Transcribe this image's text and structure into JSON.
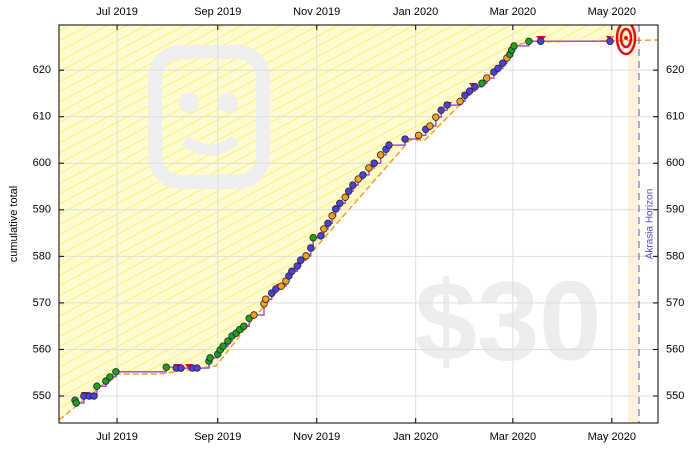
{
  "chart_data": {
    "type": "line",
    "y_label": "cumulative total",
    "horizon_label": "Akrasia Horizon",
    "watermark": "$30",
    "xlim": [
      2019.398,
      2020.409
    ],
    "ylim": [
      544.2,
      629.7
    ],
    "xticks": [
      {
        "value": 2019.496,
        "label": "Jul 2019"
      },
      {
        "value": 2019.666,
        "label": "Sep 2019"
      },
      {
        "value": 2019.833,
        "label": "Nov 2019"
      },
      {
        "value": 2020.0,
        "label": "Jan 2020"
      },
      {
        "value": 2020.164,
        "label": "Mar 2020"
      },
      {
        "value": 2020.331,
        "label": "May 2020"
      }
    ],
    "yticks": [
      550,
      560,
      570,
      580,
      590,
      600,
      610,
      620
    ],
    "grid": true,
    "line_color": "#9b59d0",
    "x": [
      2019.425,
      2019.427,
      2019.44,
      2019.449,
      2019.457,
      2019.462,
      2019.477,
      2019.484,
      2019.494,
      2019.579,
      2019.596,
      2019.604,
      2019.623,
      2019.631,
      2019.651,
      2019.653,
      2019.666,
      2019.67,
      2019.675,
      2019.683,
      2019.69,
      2019.697,
      2019.703,
      2019.71,
      2019.719,
      2019.727,
      2019.744,
      2019.747,
      2019.757,
      2019.764,
      2019.773,
      2019.781,
      2019.786,
      2019.791,
      2019.8,
      2019.806,
      2019.815,
      2019.823,
      2019.827,
      2019.84,
      2019.845,
      2019.852,
      2019.859,
      2019.865,
      2019.872,
      2019.881,
      2019.887,
      2019.894,
      2019.903,
      2019.911,
      2019.921,
      2019.93,
      2019.941,
      2019.95,
      2019.955,
      2019.982,
      2020.005,
      2020.017,
      2020.024,
      2020.034,
      2020.043,
      2020.053,
      2020.075,
      2020.083,
      2020.091,
      2020.1,
      2020.112,
      2020.12,
      2020.132,
      2020.139,
      2020.147,
      2020.154,
      2020.159,
      2020.162,
      2020.166,
      2020.191,
      2020.211,
      2020.328
    ],
    "values": [
      549.1,
      548.5,
      550.0,
      550.0,
      550.0,
      552.1,
      553.2,
      554.1,
      555.2,
      556.2,
      556.0,
      556.0,
      556.0,
      556.0,
      557.5,
      558.2,
      559.0,
      559.9,
      560.7,
      561.8,
      562.9,
      563.5,
      564.3,
      565.0,
      566.7,
      567.4,
      569.8,
      570.8,
      572.1,
      573.0,
      573.6,
      574.7,
      575.8,
      576.8,
      577.9,
      579.2,
      580.1,
      581.8,
      584.0,
      584.4,
      585.9,
      587.1,
      588.7,
      590.2,
      591.4,
      592.7,
      594.0,
      595.3,
      596.6,
      597.5,
      599.0,
      600.0,
      601.8,
      603.0,
      603.9,
      605.2,
      606.0,
      607.3,
      608.0,
      609.9,
      611.4,
      612.5,
      613.3,
      614.6,
      615.5,
      616.4,
      617.2,
      618.3,
      619.6,
      620.4,
      621.5,
      622.6,
      623.4,
      624.3,
      625.2,
      626.2,
      626.2,
      626.2
    ],
    "point_colors": [
      "#1fa01f",
      "#1fa01f",
      "#4f3fe0",
      "#4f3fe0",
      "#4f3fe0",
      "#1fa01f",
      "#1fa01f",
      "#1fa01f",
      "#1fa01f",
      "#1fa01f",
      "#4f3fe0",
      "#4f3fe0",
      "#4f3fe0",
      "#4f3fe0",
      "#1fa01f",
      "#1fa01f",
      "#1fa01f",
      "#1fa01f",
      "#1fa01f",
      "#1fa01f",
      "#1fa01f",
      "#1fa01f",
      "#1fa01f",
      "#1fa01f",
      "#1fa01f",
      "#f5a020",
      "#f5a020",
      "#f5a020",
      "#4f3fe0",
      "#4f3fe0",
      "#f5a020",
      "#f5a020",
      "#4f3fe0",
      "#4f3fe0",
      "#4f3fe0",
      "#4f3fe0",
      "#f5a020",
      "#4f3fe0",
      "#1fa01f",
      "#4f3fe0",
      "#f5a020",
      "#4f3fe0",
      "#f5a020",
      "#4f3fe0",
      "#4f3fe0",
      "#f5a020",
      "#4f3fe0",
      "#4f3fe0",
      "#f5a020",
      "#4f3fe0",
      "#f5a020",
      "#4f3fe0",
      "#f5a020",
      "#4f3fe0",
      "#4f3fe0",
      "#4f3fe0",
      "#f5a020",
      "#4f3fe0",
      "#f5a020",
      "#f5a020",
      "#4f3fe0",
      "#4f3fe0",
      "#f5a020",
      "#4f3fe0",
      "#4f3fe0",
      "#4f3fe0",
      "#1fa01f",
      "#f5a020",
      "#4f3fe0",
      "#4f3fe0",
      "#4f3fe0",
      "#f5a020",
      "#1fa01f",
      "#1fa01f",
      "#1fa01f",
      "#1fa01f",
      "#4f3fe0",
      "#4f3fe0"
    ]
  }
}
